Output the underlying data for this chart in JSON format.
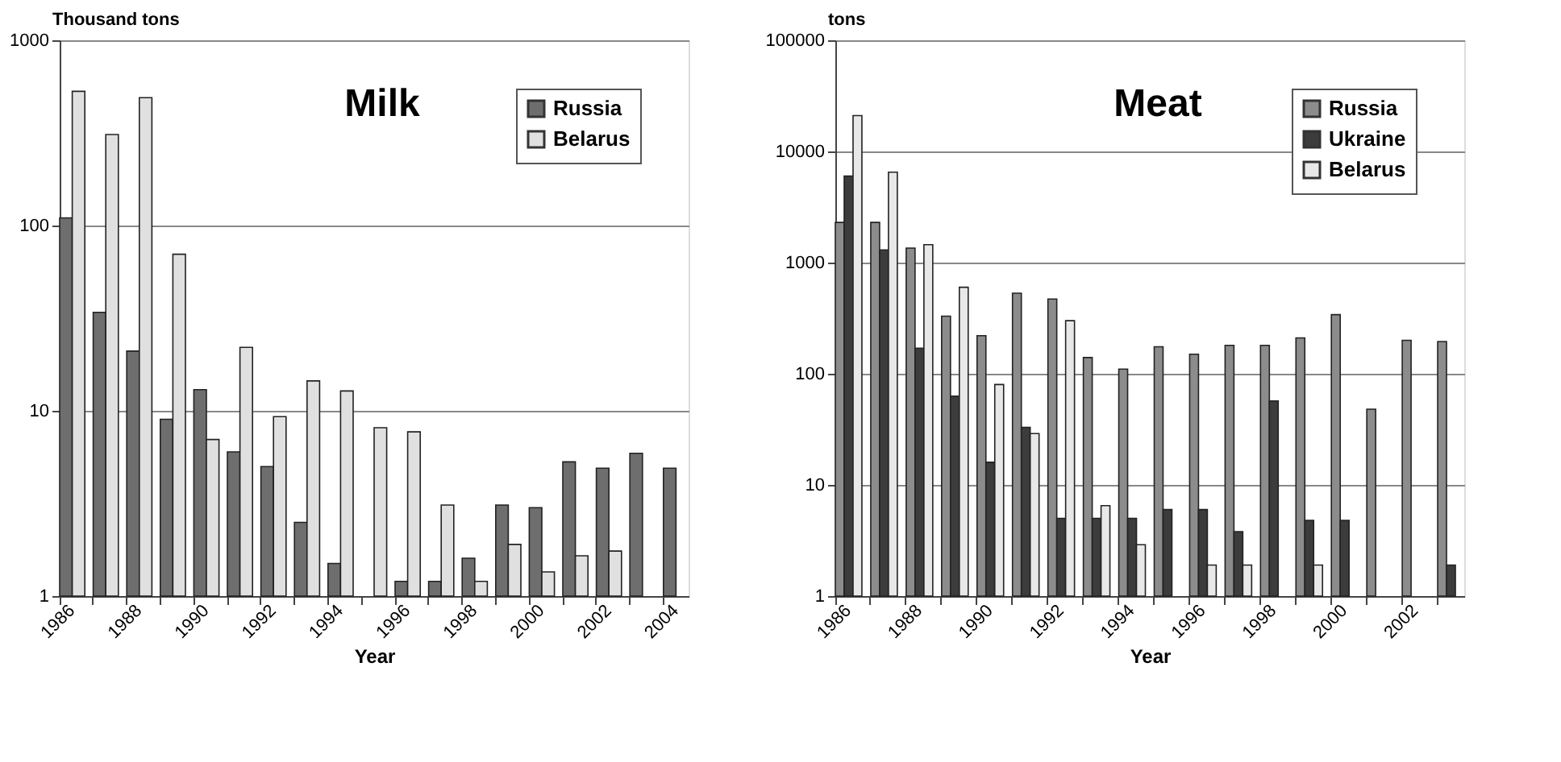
{
  "chart_data": [
    {
      "type": "bar",
      "title": "Milk",
      "xlabel": "Year",
      "ylabel": "Thousand tons",
      "log": true,
      "grid": "y",
      "legend": "top right",
      "categories": [
        "1986",
        null,
        "1988",
        null,
        "1990",
        null,
        "1992",
        null,
        "1994",
        null,
        "1996",
        null,
        "1998",
        null,
        "2000",
        null,
        "2002",
        null,
        "2004"
      ],
      "ylim": [
        1,
        1000
      ],
      "yticks": [
        1,
        10,
        100,
        1000
      ],
      "series": [
        {
          "name": "Russia",
          "color": "#6e6e6e",
          "values": [
            110,
            34,
            21,
            9,
            13,
            6,
            5,
            2.5,
            1.5,
            null,
            1.2,
            1.2,
            1.6,
            3.1,
            3.0,
            5.3,
            4.9,
            5.9,
            4.9
          ]
        },
        {
          "name": "Belarus",
          "color": "#e0e0e0",
          "values": [
            530,
            310,
            490,
            70,
            7,
            22,
            9.3,
            14.5,
            12.8,
            8.1,
            7.7,
            3.1,
            1.2,
            1.9,
            1.35,
            1.65,
            1.75,
            null,
            null
          ]
        }
      ]
    },
    {
      "type": "bar",
      "title": "Meat",
      "xlabel": "Year",
      "ylabel": "tons",
      "log": true,
      "grid": "y",
      "legend": "top right",
      "categories": [
        "1986",
        null,
        "1988",
        null,
        "1990",
        null,
        "1992",
        null,
        "1994",
        null,
        "1996",
        null,
        "1998",
        null,
        "2000",
        null,
        "2002",
        null
      ],
      "ylim": [
        1,
        100000
      ],
      "yticks": [
        1,
        10,
        100,
        1000,
        10000,
        100000
      ],
      "series": [
        {
          "name": "Russia",
          "color": "#8c8c8c",
          "values": [
            2300,
            2300,
            1350,
            330,
            220,
            530,
            470,
            140,
            110,
            175,
            150,
            180,
            180,
            210,
            340,
            48,
            200,
            195
          ]
        },
        {
          "name": "Ukraine",
          "color": "#3c3c3c",
          "values": [
            6000,
            1300,
            170,
            63,
            16,
            33,
            5,
            5,
            5,
            6,
            6,
            3.8,
            57,
            4.8,
            4.8,
            null,
            null,
            1.9
          ]
        },
        {
          "name": "Belarus",
          "color": "#e8e8e8",
          "values": [
            21000,
            6500,
            1450,
            600,
            80,
            29,
            300,
            6.5,
            2.9,
            null,
            1.9,
            1.9,
            null,
            1.9,
            null,
            null,
            null,
            null
          ]
        }
      ]
    }
  ]
}
